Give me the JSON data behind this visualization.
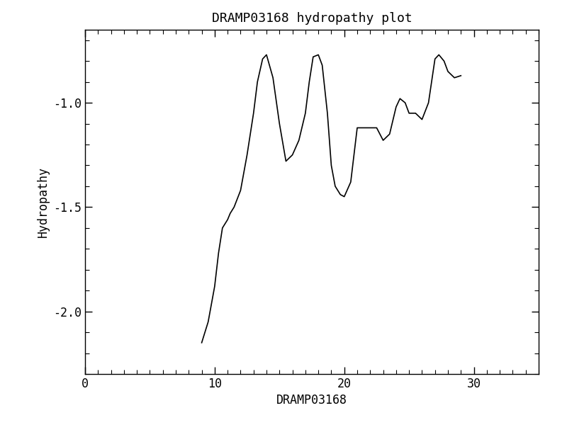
{
  "title": "DRAMP03168 hydropathy plot",
  "xlabel": "DRAMP03168",
  "ylabel": "Hydropathy",
  "xlim": [
    0,
    35
  ],
  "ylim": [
    -2.3,
    -0.65
  ],
  "xticks": [
    0,
    10,
    20,
    30
  ],
  "yticks": [
    -2.0,
    -1.5,
    -1.0
  ],
  "x": [
    9.0,
    9.5,
    10.0,
    10.3,
    10.6,
    11.0,
    11.2,
    11.5,
    12.0,
    12.5,
    13.0,
    13.3,
    13.7,
    14.0,
    14.5,
    15.0,
    15.5,
    16.0,
    16.5,
    17.0,
    17.3,
    17.6,
    18.0,
    18.3,
    18.7,
    19.0,
    19.3,
    19.7,
    20.0,
    20.5,
    21.0,
    21.5,
    22.0,
    22.5,
    23.0,
    23.5,
    24.0,
    24.3,
    24.7,
    25.0,
    25.5,
    26.0,
    26.5,
    27.0,
    27.3,
    27.7,
    28.0,
    28.5,
    29.0
  ],
  "y": [
    -2.15,
    -2.05,
    -1.88,
    -1.72,
    -1.6,
    -1.56,
    -1.53,
    -1.5,
    -1.42,
    -1.25,
    -1.05,
    -0.9,
    -0.79,
    -0.77,
    -0.88,
    -1.1,
    -1.28,
    -1.25,
    -1.18,
    -1.05,
    -0.9,
    -0.78,
    -0.77,
    -0.82,
    -1.05,
    -1.3,
    -1.4,
    -1.44,
    -1.45,
    -1.38,
    -1.12,
    -1.12,
    -1.12,
    -1.12,
    -1.18,
    -1.15,
    -1.02,
    -0.98,
    -1.0,
    -1.05,
    -1.05,
    -1.08,
    -1.0,
    -0.79,
    -0.77,
    -0.8,
    -0.85,
    -0.88,
    -0.87
  ],
  "line_color": "black",
  "line_width": 1.2,
  "bg_color": "white",
  "font_family": "DejaVu Sans Mono"
}
